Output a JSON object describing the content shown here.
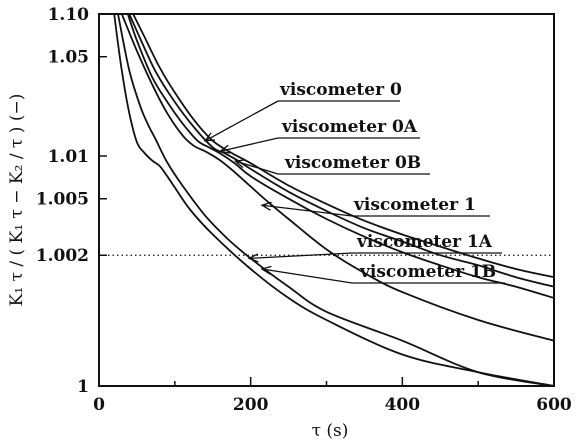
{
  "chart_data": {
    "type": "line",
    "xlabel": "τ (s)",
    "ylabel": "K₁ τ / ( K₁ τ − K₂ / τ ) (−)",
    "xlim": [
      0,
      600
    ],
    "ylim": [
      1,
      1.1
    ],
    "y_scale": "log of (y − 1)",
    "x_ticks": [
      {
        "value": 0,
        "label": "0"
      },
      {
        "value": 200,
        "label": "200"
      },
      {
        "value": 400,
        "label": "400"
      },
      {
        "value": 600,
        "label": "600"
      }
    ],
    "y_ticks": [
      {
        "value": 1,
        "label": "1"
      },
      {
        "value": 1.002,
        "label": "1.002"
      },
      {
        "value": 1.005,
        "label": "1.005"
      },
      {
        "value": 1.01,
        "label": "1.01"
      },
      {
        "value": 1.05,
        "label": "1.05"
      },
      {
        "value": 1.1,
        "label": "1.10"
      }
    ],
    "reference_line": {
      "y": 1.002,
      "style": "dotted"
    },
    "grid": false,
    "series": [
      {
        "name": "viscometer 0",
        "x": [
          45,
          60,
          80,
          100,
          125,
          150,
          175,
          200,
          250,
          300,
          350,
          400,
          450,
          500,
          550,
          600
        ],
        "y": [
          1.1,
          1.069,
          1.042,
          1.028,
          1.018,
          1.0128,
          1.0105,
          1.0089,
          1.0062,
          1.0046,
          1.0035,
          1.0028,
          1.0023,
          1.0019,
          1.0016,
          1.0014
        ]
      },
      {
        "name": "viscometer 0A",
        "x": [
          40,
          55,
          75,
          100,
          125,
          150,
          165,
          180,
          200,
          250,
          300,
          350,
          400,
          450,
          500,
          550,
          600
        ],
        "y": [
          1.1,
          1.066,
          1.039,
          1.024,
          1.016,
          1.0115,
          1.0105,
          1.0095,
          1.0081,
          1.0056,
          1.0041,
          1.0031,
          1.0025,
          1.002,
          1.0017,
          1.0014,
          1.0012
        ]
      },
      {
        "name": "viscometer 0B",
        "x": [
          38,
          50,
          70,
          90,
          110,
          130,
          145,
          160,
          180,
          200,
          250,
          300,
          350,
          400,
          450,
          500,
          550,
          600
        ],
        "y": [
          1.1,
          1.065,
          1.036,
          1.024,
          1.017,
          1.0128,
          1.0115,
          1.0104,
          1.0088,
          1.0072,
          1.005,
          1.0036,
          1.0027,
          1.0021,
          1.0017,
          1.0014,
          1.0012,
          1.001
        ]
      },
      {
        "name": "viscometer 1",
        "x": [
          20,
          30,
          40,
          50,
          60,
          70,
          80,
          90,
          100,
          120,
          150,
          200,
          250,
          300,
          400,
          500,
          600
        ],
        "y": [
          1.1,
          1.04,
          1.02,
          1.0125,
          1.0105,
          1.0093,
          1.0085,
          1.0072,
          1.006,
          1.0042,
          1.0028,
          1.0016,
          1.001,
          1.0007,
          1.0004,
          1.0003,
          1.0002
        ]
      },
      {
        "name": "viscometer 1A",
        "x": [
          30,
          50,
          70,
          90,
          110,
          125,
          140,
          160,
          180,
          200,
          220,
          250,
          300,
          350,
          400,
          500,
          600
        ],
        "y": [
          1.1,
          1.055,
          1.032,
          1.02,
          1.014,
          1.0118,
          1.0108,
          1.0093,
          1.0076,
          1.0061,
          1.0049,
          1.0036,
          1.0022,
          1.0015,
          1.0011,
          1.0007,
          1.0005
        ]
      },
      {
        "name": "viscometer 1B",
        "x": [
          25,
          40,
          55,
          65,
          75,
          90,
          110,
          140,
          170,
          200,
          250,
          300,
          400,
          500,
          600
        ],
        "y": [
          1.1,
          1.04,
          1.022,
          1.0165,
          1.013,
          1.009,
          1.0062,
          1.0038,
          1.0026,
          1.0019,
          1.0012,
          1.0008,
          1.0005,
          1.0003,
          1.0002
        ]
      }
    ],
    "annotations": [
      {
        "text": "viscometer 0",
        "target_x": 140,
        "target_y": 1.0128
      },
      {
        "text": "viscometer 0A",
        "target_x": 160,
        "target_y": 1.0108
      },
      {
        "text": "viscometer 0B",
        "target_x": 180,
        "target_y": 1.0092
      },
      {
        "text": "viscometer 1",
        "target_x": 215,
        "target_y": 1.0045
      },
      {
        "text": "viscometer 1A",
        "target_x": 198,
        "target_y": 1.0019
      },
      {
        "text": "viscometer 1B",
        "target_x": 215,
        "target_y": 1.0016
      }
    ]
  }
}
